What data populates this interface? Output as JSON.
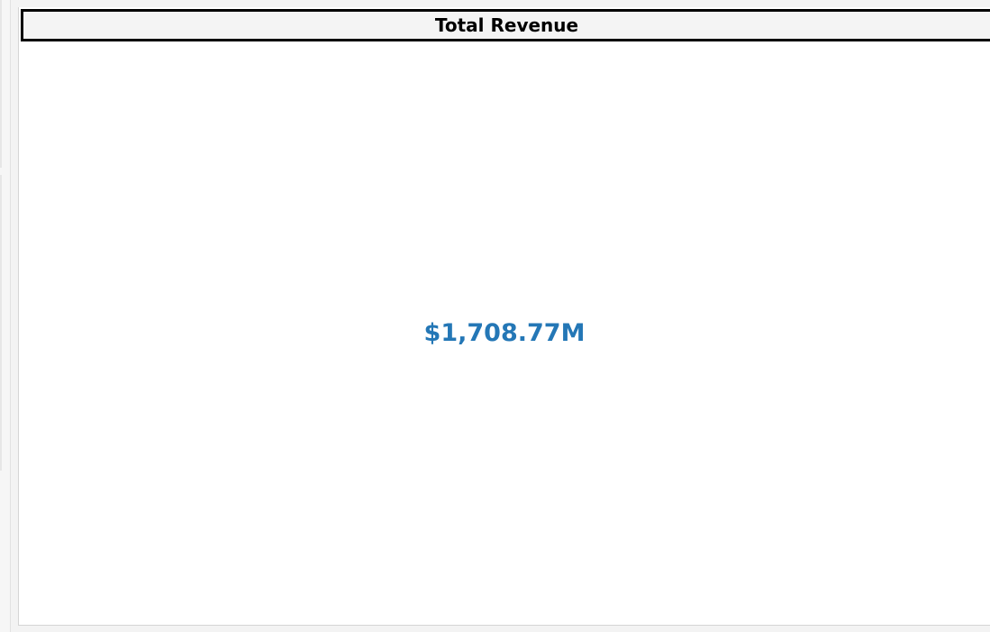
{
  "card": {
    "title": "Total Revenue",
    "value": "$1,708.77M",
    "value_color": "#2477b6",
    "title_border_color": "#000000"
  }
}
